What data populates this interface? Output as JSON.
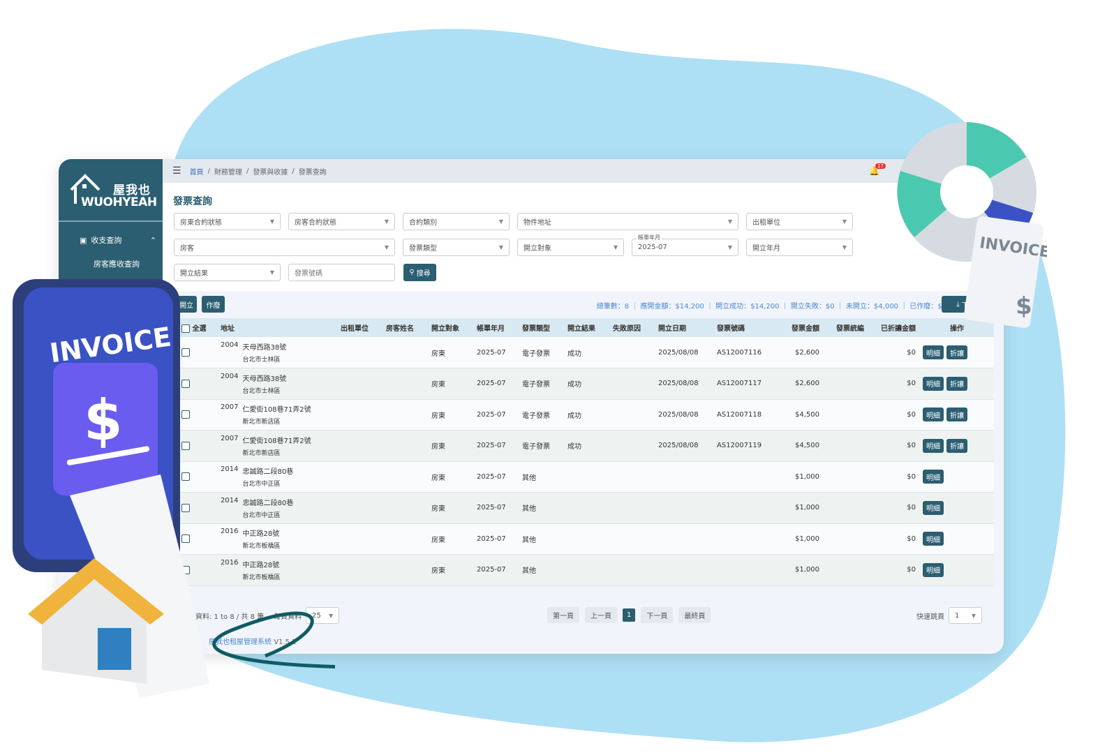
{
  "brand": {
    "name_cn": "屋我也",
    "name_en": "WUOHYEAH",
    "accent": "#2b5e71"
  },
  "sidebar": {
    "items": [
      {
        "label": "收支查詢",
        "icon": "money-icon",
        "expanded": true,
        "children": [
          {
            "label": "房客應收查詢"
          }
        ]
      }
    ]
  },
  "header": {
    "breadcrumb": [
      "首頁",
      "財務管理",
      "發票與收據",
      "發票查詢"
    ],
    "notification_count": "17"
  },
  "page": {
    "title": "發票查詢"
  },
  "filters": {
    "landlord_contract_status": "房東合約狀態",
    "tenant_contract_status": "房客合約狀態",
    "contract_type": "合約類別",
    "property_address": "物件地址",
    "rental_unit": "出租單位",
    "tenant": "房客",
    "invoice_type": "發票類型",
    "issue_target": "開立對象",
    "billing_month_label": "帳單年月",
    "billing_month_value": "2025-07",
    "issue_month": "開立年月",
    "issue_result": "開立結果",
    "invoice_number_placeholder": "發票號碼",
    "search_label": "搜尋"
  },
  "toolbar": {
    "issue_label": "開立",
    "void_label": "作廢",
    "download_label": "下載"
  },
  "summary": "總筆數：8 ｜ 應開金額：$14,200 ｜ 開立成功：$14,200 ｜ 開立失敗：$0 ｜ 未開立：$4,000 ｜ 已作廢：$0",
  "table": {
    "select_all": "全選",
    "columns": [
      "地址",
      "出租單位",
      "房客姓名",
      "開立對象",
      "帳單年月",
      "發票類型",
      "開立結果",
      "失敗原因",
      "開立日期",
      "發票號碼",
      "發票金額",
      "發票統編",
      "已折讓金額",
      "操作"
    ],
    "detail_label": "明細",
    "discount_label": "折讓",
    "rows": [
      {
        "unit": "2004",
        "street": "天母西路38號",
        "district": "台北市士林區",
        "target": "房東",
        "month": "2025-07",
        "type": "電子發票",
        "result": "成功",
        "reason": "",
        "date": "2025/08/08",
        "number": "AS12007116",
        "amount": "$2,600",
        "tax_id": "",
        "discounted": "$0",
        "discount": true
      },
      {
        "unit": "2004",
        "street": "天母西路38號",
        "district": "台北市士林區",
        "target": "房東",
        "month": "2025-07",
        "type": "電子發票",
        "result": "成功",
        "reason": "",
        "date": "2025/08/08",
        "number": "AS12007117",
        "amount": "$2,600",
        "tax_id": "",
        "discounted": "$0",
        "discount": true
      },
      {
        "unit": "2007",
        "street": "仁愛街108巷71弄2號",
        "district": "新北市新店區",
        "target": "房東",
        "month": "2025-07",
        "type": "電子發票",
        "result": "成功",
        "reason": "",
        "date": "2025/08/08",
        "number": "AS12007118",
        "amount": "$4,500",
        "tax_id": "",
        "discounted": "$0",
        "discount": true
      },
      {
        "unit": "2007",
        "street": "仁愛街108巷71弄2號",
        "district": "新北市新店區",
        "target": "房東",
        "month": "2025-07",
        "type": "電子發票",
        "result": "成功",
        "reason": "",
        "date": "2025/08/08",
        "number": "AS12007119",
        "amount": "$4,500",
        "tax_id": "",
        "discounted": "$0",
        "discount": true
      },
      {
        "unit": "2014",
        "street": "忠誠路二段80巷",
        "district": "台北市中正區",
        "target": "房東",
        "month": "2025-07",
        "type": "其他",
        "result": "",
        "reason": "",
        "date": "",
        "number": "",
        "amount": "$1,000",
        "tax_id": "",
        "discounted": "$0",
        "discount": false
      },
      {
        "unit": "2014",
        "street": "忠誠路二段80巷",
        "district": "台北市中正區",
        "target": "房東",
        "month": "2025-07",
        "type": "其他",
        "result": "",
        "reason": "",
        "date": "",
        "number": "",
        "amount": "$1,000",
        "tax_id": "",
        "discounted": "$0",
        "discount": false
      },
      {
        "unit": "2016",
        "street": "中正路28號",
        "district": "新北市板橋區",
        "target": "房東",
        "month": "2025-07",
        "type": "其他",
        "result": "",
        "reason": "",
        "date": "",
        "number": "",
        "amount": "$1,000",
        "tax_id": "",
        "discounted": "$0",
        "discount": false
      },
      {
        "unit": "2016",
        "street": "中正路28號",
        "district": "新北市板橋區",
        "target": "房東",
        "month": "2025-07",
        "type": "其他",
        "result": "",
        "reason": "",
        "date": "",
        "number": "",
        "amount": "$1,000",
        "tax_id": "",
        "discounted": "$0",
        "discount": false
      }
    ]
  },
  "pagination": {
    "info": "前資料: 1 to 8 / 共 8 筆",
    "per_page_label": "每頁資料",
    "per_page": "25",
    "first": "第一頁",
    "prev": "上一頁",
    "current": "1",
    "next": "下一頁",
    "last": "最終頁",
    "jump_label": "快速跳頁",
    "jump_value": "1"
  },
  "footer": {
    "system": "屋我也租屋管理系統",
    "version": "V1.5.1"
  },
  "decorations": {
    "invoice_text": "INVOICE",
    "colors": {
      "blob": "#aee0f5",
      "phone": "#3a52c4",
      "house_roof": "#f0b43c",
      "pie_teal": "#4bc9b0"
    }
  }
}
